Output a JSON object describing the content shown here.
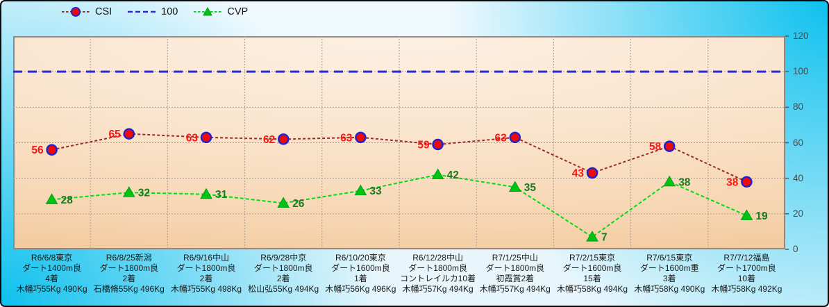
{
  "watermark": "©Caniの競馬データ研究室",
  "colors": {
    "frame_background_cyan": "#0ec1ee",
    "plot_background_peach": "#f6d5b1",
    "csi_line": "#9c2b25",
    "csi_marker_fill": "#ee0a0a",
    "csi_marker_stroke": "#2222cc",
    "csi_label": "#ff1414",
    "hundred_line": "#2a2ad0",
    "cvp_line": "#00dc10",
    "cvp_marker_fill": "#00c414",
    "cvp_marker_stroke": "#009e10",
    "cvp_label": "#1e7820",
    "gridline": "#a89c90",
    "watermark_color": "#7e85df"
  },
  "chart_data": {
    "type": "line",
    "title": "",
    "xlabel": "",
    "ylabel": "",
    "ylim": [
      0,
      120
    ],
    "yticks": [
      0,
      20,
      40,
      60,
      80,
      100,
      120
    ],
    "y_axis_side": "right",
    "grid": true,
    "legend_position": "top-left",
    "categories": [
      [
        "R6/6/8東京",
        "ダート1400m良",
        "4着",
        "木幡巧55Kg 490Kg"
      ],
      [
        "R6/8/25新潟",
        "ダート1800m良",
        "2着",
        "石橋脩55Kg 496Kg"
      ],
      [
        "R6/9/16中山",
        "ダート1800m良",
        "2着",
        "木幡巧55Kg 498Kg"
      ],
      [
        "R6/9/28中京",
        "ダート1800m良",
        "2着",
        "松山弘55Kg 494Kg"
      ],
      [
        "R6/10/20東京",
        "ダート1600m良",
        "1着",
        "木幡巧56Kg 496Kg"
      ],
      [
        "R6/12/28中山",
        "ダート1800m良",
        "コントレイルカ10着",
        "木幡巧57Kg 494Kg"
      ],
      [
        "R7/1/25中山",
        "ダート1800m良",
        "初霞賞2着",
        "木幡巧57Kg 494Kg"
      ],
      [
        "R7/2/15東京",
        "ダート1600m良",
        "15着",
        "木幡巧58Kg 494Kg"
      ],
      [
        "R7/6/15東京",
        "ダート1600m重",
        "3着",
        "木幡巧58Kg 490Kg"
      ],
      [
        "R7/7/12福島",
        "ダート1700m良",
        "10着",
        "木幡巧58Kg 492Kg"
      ]
    ],
    "series": [
      {
        "name": "CSI",
        "values": [
          56,
          65,
          63,
          62,
          63,
          59,
          63,
          43,
          58,
          38
        ],
        "color": "#9c2b25",
        "dash": "4 3",
        "width": 2,
        "marker": "circle",
        "marker_fill": "#ee0a0a",
        "marker_stroke": "#2222cc",
        "label_color": "#ff1414",
        "label_side": "left"
      },
      {
        "name": "100",
        "constant": 100,
        "color": "#2a2ad0",
        "dash": "13 8",
        "width": 3,
        "marker": "none",
        "full_width": true
      },
      {
        "name": "CVP",
        "values": [
          28,
          32,
          31,
          26,
          33,
          42,
          35,
          7,
          38,
          19
        ],
        "color": "#00dc10",
        "dash": "5 3",
        "width": 2,
        "marker": "triangle",
        "marker_fill": "#00c414",
        "marker_stroke": "#009e10",
        "label_color": "#1e7820",
        "label_side": "right"
      }
    ]
  }
}
